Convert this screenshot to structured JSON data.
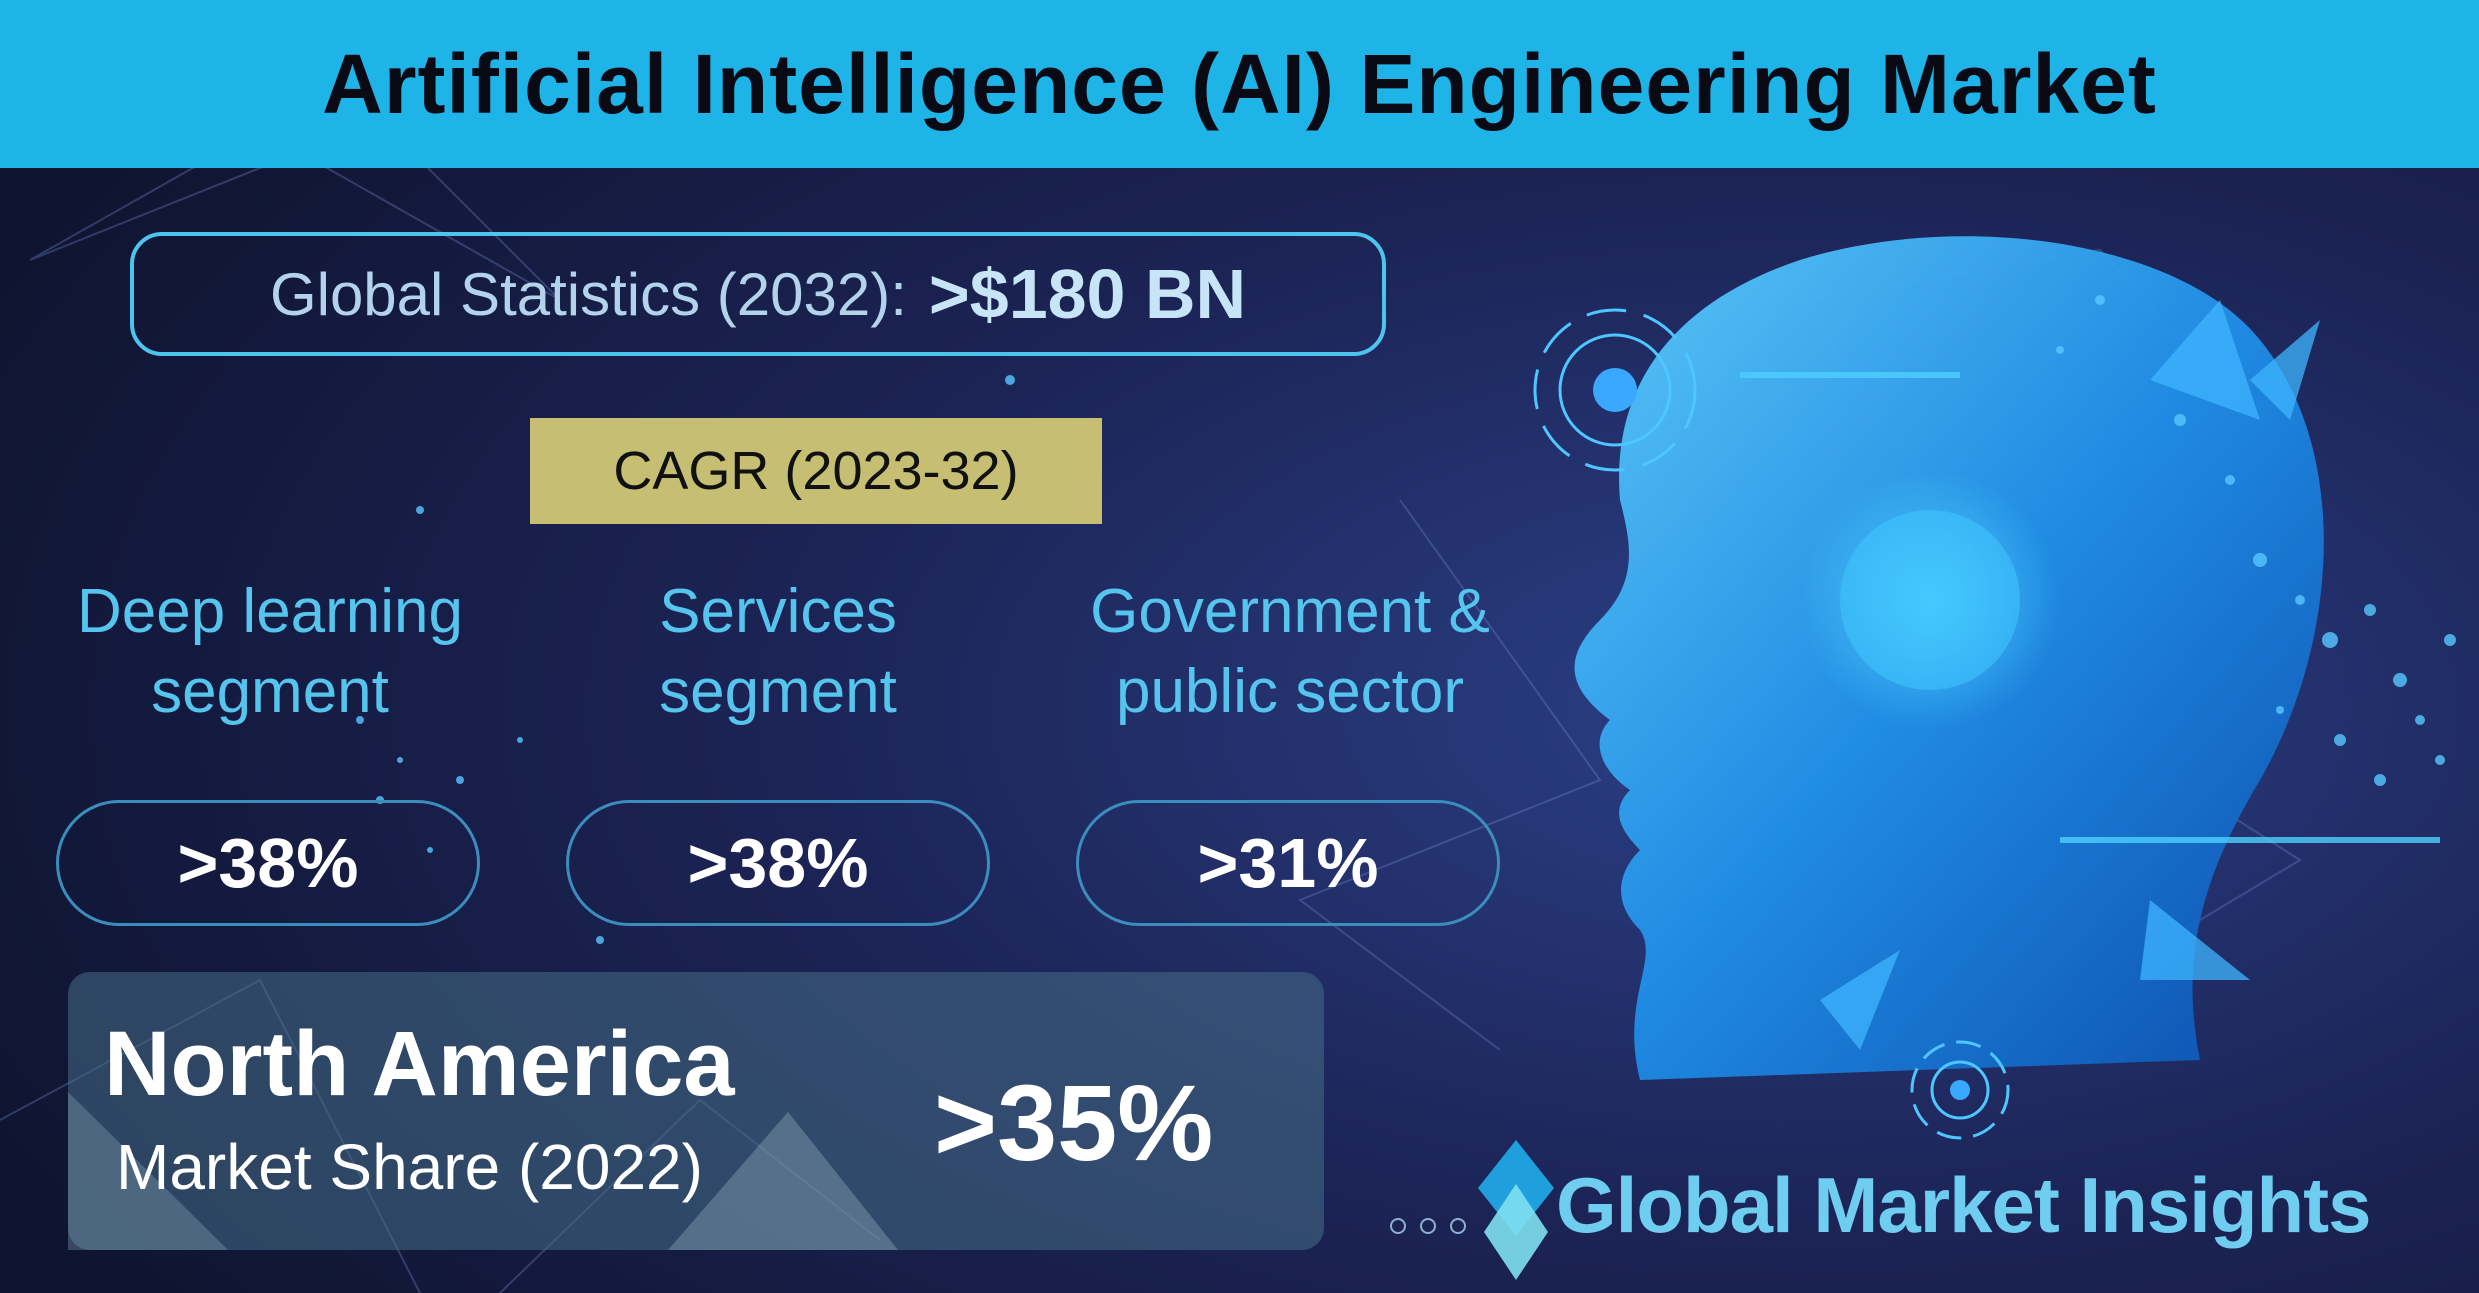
{
  "title": "Artificial Intelligence (AI) Engineering Market",
  "global_stats": {
    "label": "Global Statistics (2032):",
    "value": ">$180 BN"
  },
  "cagr_label": "CAGR (2023-32)",
  "segments": [
    {
      "label_line1": "Deep learning",
      "label_line2": "segment",
      "value": ">38%"
    },
    {
      "label_line1": "Services",
      "label_line2": "segment",
      "value": ">38%"
    },
    {
      "label_line1": "Government &",
      "label_line2": "public sector",
      "value": ">31%"
    }
  ],
  "region": {
    "name": "North America",
    "subtitle": "Market Share (2022)",
    "value": ">35%"
  },
  "brand": {
    "name": "Global Market Insights"
  },
  "colors": {
    "title_bar": "#1fb4e8",
    "accent": "#4dc4ee",
    "cagr_box": "#c5be73",
    "background": "#141a3a"
  },
  "icons": [
    "ai-head-illustration",
    "target-circle-icon",
    "brand-diamond-icon"
  ]
}
